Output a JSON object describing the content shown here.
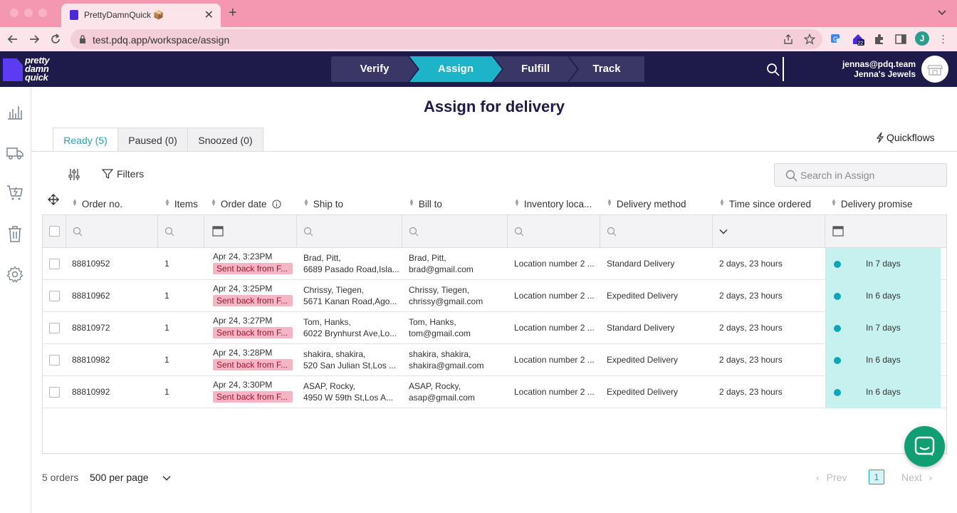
{
  "browser": {
    "tab_title": "PrettyDamnQuick 📦",
    "new_tab": "+",
    "close": "✕",
    "url": "test.pdq.app/workspace/assign",
    "profile_initial": "J",
    "extension_badge": "22"
  },
  "header": {
    "logo_text": [
      "pretty",
      "damn",
      "quick"
    ],
    "steps": [
      "Verify",
      "Assign",
      "Fulfill",
      "Track"
    ],
    "active_step": "Assign",
    "account_email": "jennas@pdq.team",
    "store_name": "Jenna's Jewels"
  },
  "sidebar": {
    "icons": [
      "analytics-icon",
      "truck-icon",
      "cart-lightning-icon",
      "trash-icon",
      "settings-icon"
    ]
  },
  "page": {
    "title": "Assign for delivery",
    "tabs": [
      "Ready (5)",
      "Paused (0)",
      "Snoozed (0)"
    ],
    "active_tab": "Ready (5)",
    "quickflows": "Quickflows",
    "filters": "Filters",
    "search_placeholder": "Search in Assign"
  },
  "table": {
    "columns": [
      "Order no.",
      "Items",
      "Order date",
      "Ship to",
      "Bill to",
      "Inventory loca...",
      "Delivery method",
      "Time since ordered",
      "Delivery promise"
    ],
    "rows": [
      {
        "order": "88810952",
        "items": "1",
        "date": "Apr 24, 3:23PM",
        "status": "Sent back from F...",
        "ship1": "Brad, Pitt,",
        "ship2": "6689 Pasado Road,Isla...",
        "bill1": "Brad, Pitt,",
        "bill2": "brad@gmail.com",
        "location": "Location number 2 ...",
        "method": "Standard Delivery",
        "since": "2 days, 23 hours",
        "promise": "In 7 days"
      },
      {
        "order": "88810962",
        "items": "1",
        "date": "Apr 24, 3:25PM",
        "status": "Sent back from F...",
        "ship1": "Chrissy, Tiegen,",
        "ship2": "5671 Kanan Road,Ago...",
        "bill1": "Chrissy, Tiegen,",
        "bill2": "chrissy@gmail.com",
        "location": "Location number 2 ...",
        "method": "Expedited Delivery",
        "since": "2 days, 23 hours",
        "promise": "In 6 days"
      },
      {
        "order": "88810972",
        "items": "1",
        "date": "Apr 24, 3:27PM",
        "status": "Sent back from F...",
        "ship1": "Tom, Hanks,",
        "ship2": "6022 Brynhurst Ave,Lo...",
        "bill1": "Tom, Hanks,",
        "bill2": "tom@gmail.com",
        "location": "Location number 2 ...",
        "method": "Standard Delivery",
        "since": "2 days, 23 hours",
        "promise": "In 7 days"
      },
      {
        "order": "88810982",
        "items": "1",
        "date": "Apr 24, 3:28PM",
        "status": "Sent back from F...",
        "ship1": "shakira, shakira,",
        "ship2": "520 San Julian St,Los ...",
        "bill1": "shakira, shakira,",
        "bill2": "shakira@gmail.com",
        "location": "Location number 2 ...",
        "method": "Expedited Delivery",
        "since": "2 days, 23 hours",
        "promise": "In 6 days"
      },
      {
        "order": "88810992",
        "items": "1",
        "date": "Apr 24, 3:30PM",
        "status": "Sent back from F...",
        "ship1": "ASAP, Rocky,",
        "ship2": "4950 W 59th St,Los A...",
        "bill1": "ASAP, Rocky,",
        "bill2": "asap@gmail.com",
        "location": "Location number 2 ...",
        "method": "Expedited Delivery",
        "since": "2 days, 23 hours",
        "promise": "In 6 days"
      }
    ]
  },
  "footer": {
    "count": "5 orders",
    "per_page": "500 per page",
    "prev": "Prev",
    "page": "1",
    "next": "Next"
  },
  "colors": {
    "brand_navy": "#1e1b4b",
    "accent_teal": "#1db4c9",
    "status_pill": "#f4b6c5",
    "promise_bg": "#c6f1ef",
    "chat_green": "#109e72"
  }
}
